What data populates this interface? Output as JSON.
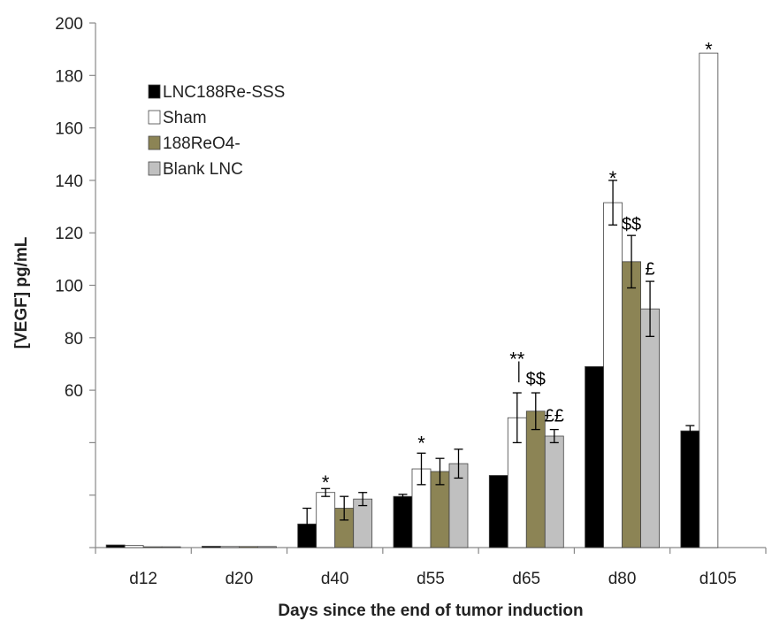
{
  "chart_data": {
    "type": "bar",
    "title": "",
    "xlabel": "Days since the end of tumor induction",
    "ylabel": "[VEGF] pg/mL",
    "categories": [
      "d12",
      "d20",
      "d40",
      "d55",
      "d65",
      "d80",
      "d105"
    ],
    "ylim": [
      0,
      200
    ],
    "yticks": [
      0,
      20,
      40,
      60,
      80,
      100,
      120,
      140,
      160,
      180,
      200
    ],
    "ytick_labels": [
      "",
      "",
      "",
      "60",
      "80",
      "100",
      "120",
      "140",
      "160",
      "180",
      "200"
    ],
    "grid": false,
    "legend_position": "top-left",
    "series": [
      {
        "name": "LNC188Re-SSS",
        "color": "#000000",
        "values": [
          1,
          0.5,
          9,
          19.5,
          27.5,
          69,
          44.5
        ],
        "errors": [
          0,
          0,
          6,
          0.8,
          0,
          0,
          2
        ]
      },
      {
        "name": "Sham",
        "color": "#ffffff",
        "values": [
          0.8,
          0.4,
          21,
          30,
          49.5,
          131.5,
          188.5
        ],
        "errors": [
          0,
          0,
          1.5,
          6,
          9.5,
          8.5,
          0
        ]
      },
      {
        "name": "188ReO4-",
        "color": "#8c8455",
        "values": [
          0.3,
          0.4,
          15,
          29,
          52,
          109,
          null
        ],
        "errors": [
          0,
          0,
          4.5,
          5,
          7,
          10,
          0
        ]
      },
      {
        "name": "Blank LNC",
        "color": "#c0c0c0",
        "values": [
          0.3,
          0.4,
          18.5,
          32,
          42.5,
          91,
          null
        ],
        "errors": [
          0,
          0,
          2.5,
          5.5,
          2.5,
          10.5,
          0
        ]
      }
    ],
    "annotations": [
      {
        "text": "*",
        "category": "d40",
        "series": 1,
        "y": 27
      },
      {
        "text": "*",
        "category": "d55",
        "series": 1,
        "y": 42
      },
      {
        "text": "**",
        "category": "d65",
        "series": 1,
        "y": 74
      },
      {
        "text": "$$",
        "category": "d65",
        "series": 2,
        "y": 62
      },
      {
        "text": "££",
        "category": "d65",
        "series": 3,
        "y": 48
      },
      {
        "text": "*",
        "category": "d80",
        "series": 1,
        "y": 143
      },
      {
        "text": "$$",
        "category": "d80",
        "series": 2,
        "y": 121
      },
      {
        "text": "£",
        "category": "d80",
        "series": 3,
        "y": 104
      },
      {
        "text": "*",
        "category": "d105",
        "series": 1,
        "y": 192
      }
    ]
  }
}
